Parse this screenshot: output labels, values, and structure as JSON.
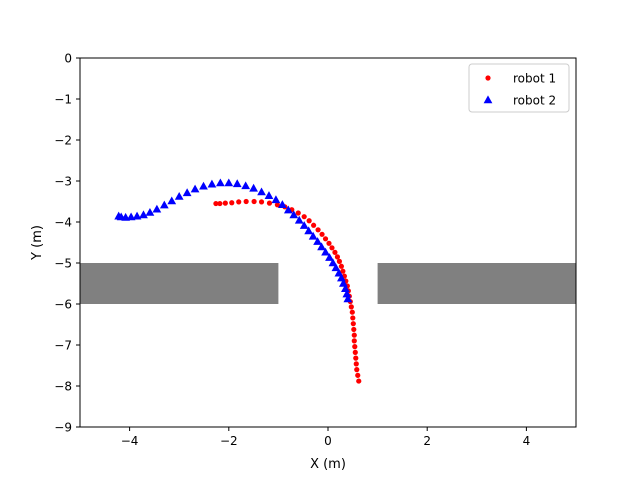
{
  "chart_data": {
    "type": "scatter",
    "title": "",
    "xlabel": "X (m)",
    "ylabel": "Y (m)",
    "xlim": [
      -5,
      5
    ],
    "ylim": [
      -9,
      0
    ],
    "xticks": [
      -4,
      -2,
      0,
      2,
      4
    ],
    "yticks": [
      0,
      -1,
      -2,
      -3,
      -4,
      -5,
      -6,
      -7,
      -8,
      -9
    ],
    "legend_position": "top-right",
    "grid": false,
    "obstacle_color": "#808080",
    "obstacles": [
      {
        "x": [
          -5,
          -1
        ],
        "y": [
          -6,
          -5
        ]
      },
      {
        "x": [
          1,
          5
        ],
        "y": [
          -6,
          -5
        ]
      }
    ],
    "series": [
      {
        "name": "robot 1",
        "marker": "circle",
        "color": "#ff0000",
        "points": [
          [
            0.62,
            -7.88
          ],
          [
            0.6,
            -7.74
          ],
          [
            0.58,
            -7.6
          ],
          [
            0.57,
            -7.46
          ],
          [
            0.56,
            -7.32
          ],
          [
            0.55,
            -7.18
          ],
          [
            0.54,
            -7.04
          ],
          [
            0.53,
            -6.9
          ],
          [
            0.53,
            -6.76
          ],
          [
            0.52,
            -6.62
          ],
          [
            0.51,
            -6.48
          ],
          [
            0.5,
            -6.34
          ],
          [
            0.49,
            -6.2
          ],
          [
            0.47,
            -6.07
          ],
          [
            0.45,
            -5.94
          ],
          [
            0.43,
            -5.81
          ],
          [
            0.41,
            -5.68
          ],
          [
            0.39,
            -5.56
          ],
          [
            0.36,
            -5.44
          ],
          [
            0.33,
            -5.32
          ],
          [
            0.3,
            -5.2
          ],
          [
            0.27,
            -5.08
          ],
          [
            0.23,
            -4.96
          ],
          [
            0.19,
            -4.85
          ],
          [
            0.14,
            -4.74
          ],
          [
            0.08,
            -4.63
          ],
          [
            0.02,
            -4.52
          ],
          [
            -0.05,
            -4.41
          ],
          [
            -0.12,
            -4.3
          ],
          [
            -0.2,
            -4.19
          ],
          [
            -0.29,
            -4.08
          ],
          [
            -0.38,
            -3.97
          ],
          [
            -0.48,
            -3.87
          ],
          [
            -0.6,
            -3.78
          ],
          [
            -0.73,
            -3.7
          ],
          [
            -0.87,
            -3.63
          ],
          [
            -1.02,
            -3.58
          ],
          [
            -1.18,
            -3.54
          ],
          [
            -1.34,
            -3.51
          ],
          [
            -1.49,
            -3.5
          ],
          [
            -1.65,
            -3.5
          ],
          [
            -1.8,
            -3.51
          ],
          [
            -1.94,
            -3.53
          ],
          [
            -2.07,
            -3.54
          ],
          [
            -2.18,
            -3.55
          ],
          [
            -2.26,
            -3.55
          ]
        ]
      },
      {
        "name": "robot 2",
        "marker": "triangle",
        "color": "#0000ff",
        "points": [
          [
            0.4,
            -5.88
          ],
          [
            0.38,
            -5.76
          ],
          [
            0.35,
            -5.63
          ],
          [
            0.31,
            -5.5
          ],
          [
            0.27,
            -5.37
          ],
          [
            0.22,
            -5.25
          ],
          [
            0.16,
            -5.12
          ],
          [
            0.1,
            -5.0
          ],
          [
            0.03,
            -4.87
          ],
          [
            -0.05,
            -4.74
          ],
          [
            -0.13,
            -4.61
          ],
          [
            -0.21,
            -4.48
          ],
          [
            -0.3,
            -4.35
          ],
          [
            -0.39,
            -4.22
          ],
          [
            -0.48,
            -4.09
          ],
          [
            -0.58,
            -3.96
          ],
          [
            -0.69,
            -3.83
          ],
          [
            -0.8,
            -3.71
          ],
          [
            -0.92,
            -3.58
          ],
          [
            -1.05,
            -3.46
          ],
          [
            -1.19,
            -3.36
          ],
          [
            -1.34,
            -3.27
          ],
          [
            -1.5,
            -3.18
          ],
          [
            -1.66,
            -3.12
          ],
          [
            -1.83,
            -3.07
          ],
          [
            -2.0,
            -3.05
          ],
          [
            -2.17,
            -3.05
          ],
          [
            -2.34,
            -3.08
          ],
          [
            -2.51,
            -3.13
          ],
          [
            -2.68,
            -3.2
          ],
          [
            -2.84,
            -3.29
          ],
          [
            -3.0,
            -3.38
          ],
          [
            -3.15,
            -3.49
          ],
          [
            -3.3,
            -3.59
          ],
          [
            -3.45,
            -3.69
          ],
          [
            -3.59,
            -3.77
          ],
          [
            -3.72,
            -3.83
          ],
          [
            -3.85,
            -3.86
          ],
          [
            -3.97,
            -3.88
          ],
          [
            -4.08,
            -3.89
          ],
          [
            -4.17,
            -3.88
          ],
          [
            -4.22,
            -3.86
          ]
        ]
      }
    ]
  }
}
